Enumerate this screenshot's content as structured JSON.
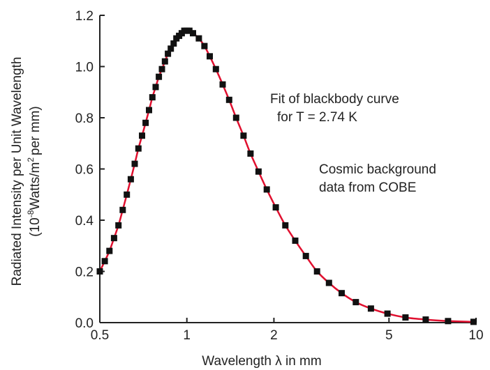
{
  "chart_data": {
    "type": "scatter",
    "xscale": "log",
    "xlim": [
      0.5,
      10
    ],
    "ylim": [
      0,
      1.2
    ],
    "xticks": [
      {
        "value": 0.5,
        "label": "0.5"
      },
      {
        "value": 1,
        "label": "1"
      },
      {
        "value": 2,
        "label": "2"
      },
      {
        "value": 5,
        "label": "5"
      },
      {
        "value": 10,
        "label": "10"
      }
    ],
    "yticks": [
      {
        "value": 0.0,
        "label": "0.0"
      },
      {
        "value": 0.2,
        "label": "0.2"
      },
      {
        "value": 0.4,
        "label": "0.4"
      },
      {
        "value": 0.6,
        "label": "0.6"
      },
      {
        "value": 0.8,
        "label": "0.8"
      },
      {
        "value": 1.0,
        "label": "1.0"
      },
      {
        "value": 1.2,
        "label": "1.2"
      }
    ],
    "xlabel": "Wavelength λ in mm",
    "ylabel": {
      "line1": "Radiated Intensity per Unit Wavelength",
      "line2_part1": "(10",
      "line2_sup1": "-8",
      "line2_part2": "Watts/m",
      "line2_sup2": "2",
      "line2_part3": "per mm)"
    },
    "grid": false,
    "series": [
      {
        "marker": "square",
        "color": "#111111",
        "x": [
          0.5,
          0.52,
          0.54,
          0.56,
          0.58,
          0.6,
          0.62,
          0.64,
          0.66,
          0.68,
          0.7,
          0.72,
          0.74,
          0.76,
          0.78,
          0.8,
          0.82,
          0.84,
          0.86,
          0.88,
          0.9,
          0.92,
          0.94,
          0.96,
          0.98,
          1.0,
          1.02,
          1.05,
          1.1,
          1.15,
          1.2,
          1.26,
          1.33,
          1.4,
          1.48,
          1.57,
          1.66,
          1.77,
          1.89,
          2.03,
          2.19,
          2.37,
          2.58,
          2.82,
          3.1,
          3.43,
          3.84,
          4.33,
          4.94,
          5.7,
          6.7,
          8.0,
          9.8
        ],
        "y": [
          0.2,
          0.24,
          0.28,
          0.33,
          0.38,
          0.44,
          0.5,
          0.56,
          0.62,
          0.68,
          0.73,
          0.78,
          0.83,
          0.88,
          0.92,
          0.96,
          0.99,
          1.02,
          1.05,
          1.07,
          1.09,
          1.11,
          1.12,
          1.13,
          1.14,
          1.14,
          1.14,
          1.13,
          1.11,
          1.08,
          1.04,
          0.99,
          0.93,
          0.87,
          0.8,
          0.73,
          0.66,
          0.59,
          0.52,
          0.45,
          0.38,
          0.32,
          0.26,
          0.2,
          0.155,
          0.115,
          0.08,
          0.055,
          0.035,
          0.02,
          0.012,
          0.006,
          0.003
        ]
      },
      {
        "type": "line",
        "color": "#e0102f",
        "temperature_k": 2.74
      }
    ],
    "annotations": [
      {
        "line1": "Fit of blackbody curve",
        "line2": "for T = 2.74 K"
      },
      {
        "line1": "Cosmic background",
        "line2": "data from COBE"
      }
    ]
  }
}
